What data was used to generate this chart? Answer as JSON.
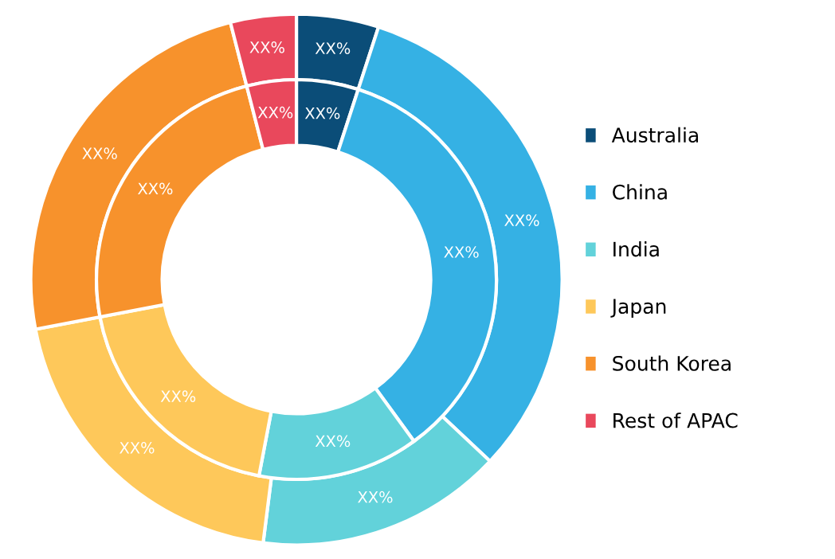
{
  "chart_data": {
    "type": "donut",
    "categories": [
      "Australia",
      "China",
      "India",
      "Japan",
      "South Korea",
      "Rest of APAC"
    ],
    "colors": [
      "#0b4d78",
      "#35b1e4",
      "#62d2da",
      "#fec85a",
      "#f7922c",
      "#e9485c"
    ],
    "series": [
      {
        "values": [
          5,
          32,
          15,
          20,
          24,
          4
        ],
        "value_labels": [
          "XX%",
          "XX%",
          "XX%",
          "XX%",
          "XX%",
          "XX%"
        ]
      },
      {
        "values": [
          5,
          35,
          13,
          19,
          24,
          4
        ],
        "value_labels": [
          "XX%",
          "XX%",
          "XX%",
          "XX%",
          "XX%",
          "XX%"
        ]
      }
    ],
    "legend": "right"
  }
}
